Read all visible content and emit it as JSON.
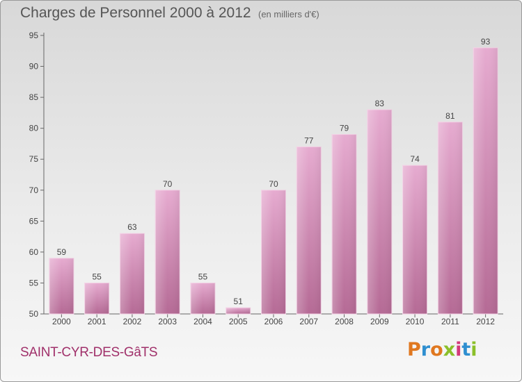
{
  "header": {
    "title": "Charges de Personnel 2000 à 2012",
    "unit": "(en milliers d'€)"
  },
  "footer": {
    "commune": "SAINT-CYR-DES-GâTS",
    "logo_letters": [
      {
        "char": "P",
        "color": "#e07820"
      },
      {
        "char": "r",
        "color": "#2f8fd0"
      },
      {
        "char": "o",
        "color": "#e07820"
      },
      {
        "char": "x",
        "color": "#8bbf2a"
      },
      {
        "char": "i",
        "color": "#d43a7a"
      },
      {
        "char": "t",
        "color": "#2f8fd0"
      },
      {
        "char": "i",
        "color": "#8bbf2a"
      }
    ]
  },
  "colors": {
    "bar_light": "#e6abd0",
    "bar_dark": "#b56a95",
    "accent": "#a0306a"
  },
  "chart_data": {
    "type": "bar",
    "categories": [
      "2000",
      "2001",
      "2002",
      "2003",
      "2004",
      "2005",
      "2006",
      "2007",
      "2008",
      "2009",
      "2010",
      "2011",
      "2012"
    ],
    "values": [
      59,
      55,
      63,
      70,
      55,
      51,
      70,
      77,
      79,
      83,
      74,
      81,
      93
    ],
    "title": "Charges de Personnel 2000 à 2012",
    "xlabel": "",
    "ylabel": "",
    "ylim": [
      50,
      95
    ],
    "yticks": [
      50,
      55,
      60,
      65,
      70,
      75,
      80,
      85,
      90,
      95
    ],
    "grid": false,
    "legend": "none"
  }
}
